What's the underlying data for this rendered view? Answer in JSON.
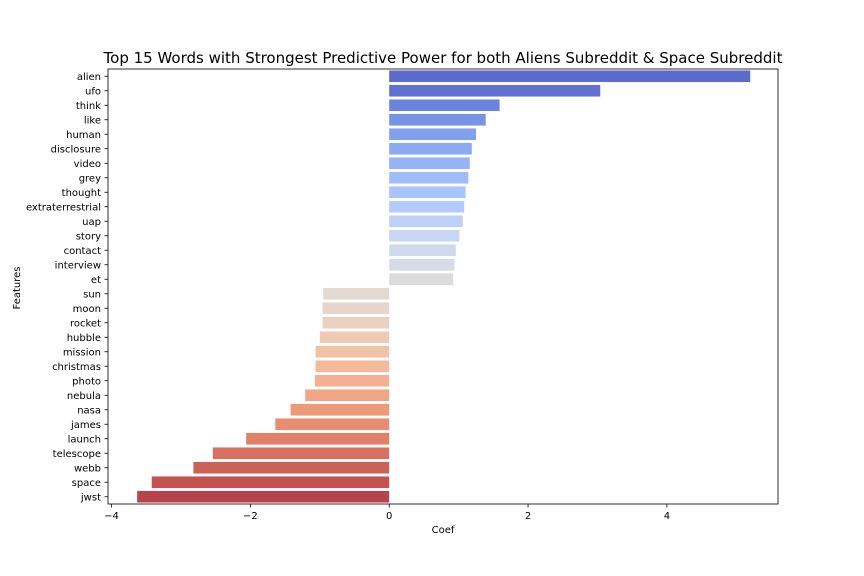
{
  "chart_data": {
    "type": "bar",
    "orientation": "horizontal",
    "title": "Top 15 Words with Strongest Predictive Power for both Aliens Subreddit & Space Subreddit",
    "xlabel": "Coef",
    "ylabel": "Features",
    "xlim": [
      -4.05,
      5.6
    ],
    "xticks": [
      -4,
      -2,
      0,
      2,
      4
    ],
    "xtick_labels": [
      "−4",
      "−2",
      "0",
      "2",
      "4"
    ],
    "grid": false,
    "categories": [
      "alien",
      "ufo",
      "think",
      "like",
      "human",
      "disclosure",
      "video",
      "grey",
      "thought",
      "extraterrestrial",
      "uap",
      "story",
      "contact",
      "interview",
      "et",
      "sun",
      "moon",
      "rocket",
      "hubble",
      "mission",
      "christmas",
      "photo",
      "nebula",
      "nasa",
      "james",
      "launch",
      "telescope",
      "webb",
      "space",
      "jwst"
    ],
    "values": [
      5.2,
      3.04,
      1.59,
      1.39,
      1.25,
      1.19,
      1.16,
      1.14,
      1.1,
      1.08,
      1.06,
      1.01,
      0.96,
      0.94,
      0.92,
      -0.95,
      -0.96,
      -0.96,
      -1.0,
      -1.06,
      -1.06,
      -1.07,
      -1.21,
      -1.42,
      -1.64,
      -2.06,
      -2.54,
      -2.82,
      -3.42,
      -3.63
    ],
    "colors": [
      "#5a6bcb",
      "#6071d0",
      "#6a83dd",
      "#7793e6",
      "#81a0ee",
      "#8aaaf2",
      "#94b4f7",
      "#9fbdfb",
      "#a9c4fd",
      "#b3cbfd",
      "#bed2f9",
      "#c7d6f4",
      "#cfd9ee",
      "#d6dbe5",
      "#dcdcdd",
      "#e1d9d2",
      "#e6d5cb",
      "#ecd0c0",
      "#efc9b4",
      "#f2c2a8",
      "#f3ba9c",
      "#f3b093",
      "#f1a686",
      "#ed9a7b",
      "#e78e70",
      "#e08066",
      "#d7705d",
      "#cc6256",
      "#c35250",
      "#b8434b"
    ]
  }
}
